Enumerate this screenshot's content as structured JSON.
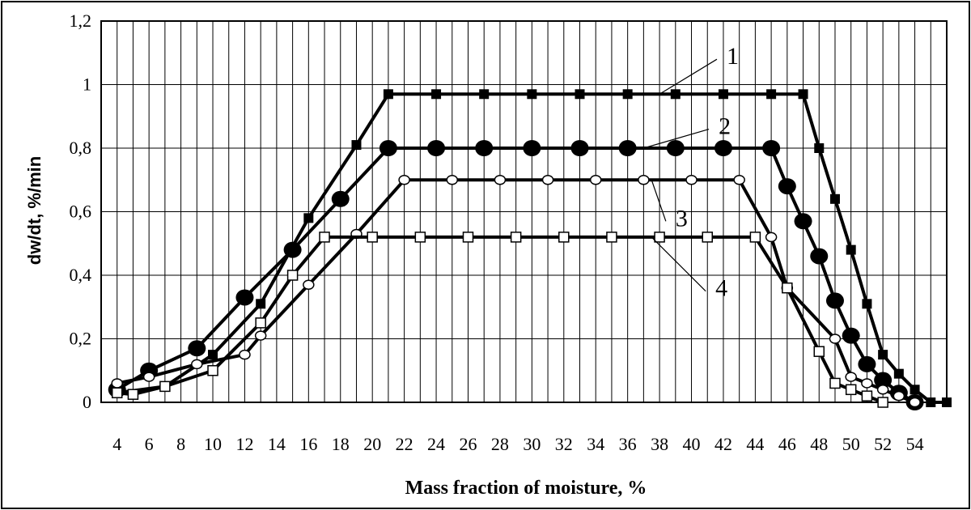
{
  "chart_data": {
    "type": "line",
    "xlabel": "Mass fraction of moisture, %",
    "ylabel": "dw/dt, %/min",
    "xlim": [
      3,
      56
    ],
    "ylim": [
      0,
      1.2
    ],
    "x_ticks": [
      4,
      6,
      8,
      10,
      12,
      14,
      16,
      18,
      20,
      22,
      24,
      26,
      28,
      30,
      32,
      34,
      36,
      38,
      40,
      42,
      44,
      46,
      48,
      50,
      52,
      54
    ],
    "x_tick_labels": [
      "4",
      "6",
      "8",
      "10",
      "12",
      "14",
      "16",
      "18",
      "20",
      "22",
      "24",
      "26",
      "28",
      "30",
      "32",
      "34",
      "36",
      "38",
      "40",
      "42",
      "44",
      "46",
      "48",
      "50",
      "52",
      "54"
    ],
    "y_ticks": [
      0,
      0.2,
      0.4,
      0.6,
      0.8,
      1.0,
      1.2
    ],
    "y_tick_labels": [
      "0",
      "0,2",
      "0,4",
      "0,6",
      "0,8",
      "1",
      "1,2"
    ],
    "grid": true,
    "series": [
      {
        "name": "1",
        "marker": "filled-square",
        "x": [
          4,
          7,
          10,
          13,
          16,
          19,
          21,
          24,
          27,
          30,
          33,
          36,
          39,
          42,
          45,
          47,
          48,
          49,
          50,
          51,
          52,
          53,
          54,
          55,
          56
        ],
        "y": [
          0.03,
          0.05,
          0.15,
          0.31,
          0.58,
          0.81,
          0.97,
          0.97,
          0.97,
          0.97,
          0.97,
          0.97,
          0.97,
          0.97,
          0.97,
          0.97,
          0.8,
          0.64,
          0.48,
          0.31,
          0.15,
          0.09,
          0.04,
          0.0,
          0.0
        ]
      },
      {
        "name": "2",
        "marker": "filled-circle",
        "x": [
          4,
          6,
          9,
          12,
          15,
          18,
          21,
          24,
          27,
          30,
          33,
          36,
          39,
          42,
          45,
          46,
          47,
          48,
          49,
          50,
          51,
          52,
          53,
          54
        ],
        "y": [
          0.04,
          0.1,
          0.17,
          0.33,
          0.48,
          0.64,
          0.8,
          0.8,
          0.8,
          0.8,
          0.8,
          0.8,
          0.8,
          0.8,
          0.8,
          0.68,
          0.57,
          0.46,
          0.32,
          0.21,
          0.12,
          0.07,
          0.03,
          0.0
        ]
      },
      {
        "name": "3",
        "marker": "open-circle",
        "x": [
          4,
          6,
          9,
          12,
          13,
          16,
          19,
          22,
          25,
          28,
          31,
          34,
          37,
          40,
          43,
          45,
          46,
          49,
          50,
          51,
          52,
          53,
          54
        ],
        "y": [
          0.06,
          0.08,
          0.12,
          0.15,
          0.21,
          0.37,
          0.53,
          0.7,
          0.7,
          0.7,
          0.7,
          0.7,
          0.7,
          0.7,
          0.7,
          0.52,
          0.36,
          0.2,
          0.08,
          0.06,
          0.04,
          0.02,
          0.0
        ]
      },
      {
        "name": "4",
        "marker": "open-square",
        "x": [
          4,
          5,
          7,
          10,
          13,
          15,
          17,
          20,
          23,
          26,
          29,
          32,
          35,
          38,
          41,
          44,
          46,
          48,
          49,
          50,
          51,
          52
        ],
        "y": [
          0.03,
          0.025,
          0.05,
          0.1,
          0.25,
          0.4,
          0.52,
          0.52,
          0.52,
          0.52,
          0.52,
          0.52,
          0.52,
          0.52,
          0.52,
          0.52,
          0.36,
          0.16,
          0.06,
          0.04,
          0.02,
          0.0
        ]
      }
    ],
    "curve_labels": [
      {
        "text": "1",
        "x": 42,
        "y": 1.09,
        "leader_to_x": 38,
        "leader_to_y": 0.97
      },
      {
        "text": "2",
        "x": 41.5,
        "y": 0.87,
        "leader_to_x": 37,
        "leader_to_y": 0.8
      },
      {
        "text": "3",
        "x": 38.8,
        "y": 0.58,
        "leader_to_x": 37.5,
        "leader_to_y": 0.7
      },
      {
        "text": "4",
        "x": 41.3,
        "y": 0.36,
        "leader_to_x": 37.5,
        "leader_to_y": 0.52
      }
    ]
  }
}
